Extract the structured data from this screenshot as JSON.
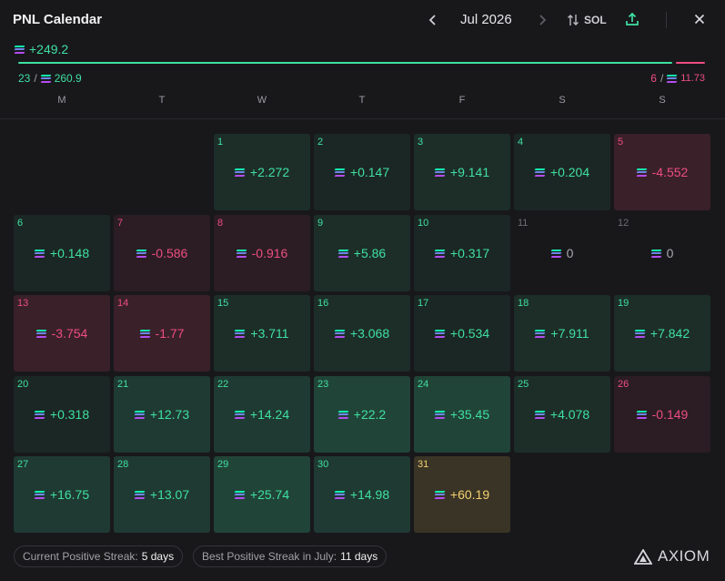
{
  "header": {
    "title": "PNL Calendar",
    "month": "Jul 2026",
    "currency": "SOL",
    "prev_icon": "chevron-left-icon",
    "next_icon": "chevron-right-icon",
    "sort_icon": "swap-vertical-icon",
    "share_icon": "share-upload-icon",
    "close_icon": "close-icon"
  },
  "summary": {
    "total": "+249.2",
    "positive_days": "23",
    "positive_total": "260.9",
    "negative_days": "6",
    "negative_total": "11.73",
    "positive_share": 0.957
  },
  "weekdays": [
    "M",
    "T",
    "W",
    "T",
    "F",
    "S",
    "S"
  ],
  "days": [
    {
      "day": "1",
      "value": "+2.272",
      "tone": "pos"
    },
    {
      "day": "2",
      "value": "+0.147",
      "tone": "pos"
    },
    {
      "day": "3",
      "value": "+9.141",
      "tone": "pos"
    },
    {
      "day": "4",
      "value": "+0.204",
      "tone": "pos"
    },
    {
      "day": "5",
      "value": "-4.552",
      "tone": "neg"
    },
    {
      "day": "6",
      "value": "+0.148",
      "tone": "pos"
    },
    {
      "day": "7",
      "value": "-0.586",
      "tone": "neg"
    },
    {
      "day": "8",
      "value": "-0.916",
      "tone": "neg"
    },
    {
      "day": "9",
      "value": "+5.86",
      "tone": "pos"
    },
    {
      "day": "10",
      "value": "+0.317",
      "tone": "pos"
    },
    {
      "day": "11",
      "value": "0",
      "tone": "zero"
    },
    {
      "day": "12",
      "value": "0",
      "tone": "zero"
    },
    {
      "day": "13",
      "value": "-3.754",
      "tone": "neg"
    },
    {
      "day": "14",
      "value": "-1.77",
      "tone": "neg"
    },
    {
      "day": "15",
      "value": "+3.711",
      "tone": "pos"
    },
    {
      "day": "16",
      "value": "+3.068",
      "tone": "pos"
    },
    {
      "day": "17",
      "value": "+0.534",
      "tone": "pos"
    },
    {
      "day": "18",
      "value": "+7.911",
      "tone": "pos"
    },
    {
      "day": "19",
      "value": "+7.842",
      "tone": "pos"
    },
    {
      "day": "20",
      "value": "+0.318",
      "tone": "pos"
    },
    {
      "day": "21",
      "value": "+12.73",
      "tone": "pos"
    },
    {
      "day": "22",
      "value": "+14.24",
      "tone": "pos"
    },
    {
      "day": "23",
      "value": "+22.2",
      "tone": "pos"
    },
    {
      "day": "24",
      "value": "+35.45",
      "tone": "pos"
    },
    {
      "day": "25",
      "value": "+4.078",
      "tone": "pos"
    },
    {
      "day": "26",
      "value": "-0.149",
      "tone": "neg"
    },
    {
      "day": "27",
      "value": "+16.75",
      "tone": "pos"
    },
    {
      "day": "28",
      "value": "+13.07",
      "tone": "pos"
    },
    {
      "day": "29",
      "value": "+25.74",
      "tone": "pos"
    },
    {
      "day": "30",
      "value": "+14.98",
      "tone": "pos"
    },
    {
      "day": "31",
      "value": "+60.19",
      "tone": "best"
    }
  ],
  "first_weekday_index": 2,
  "footer": {
    "current_streak_label": "Current Positive Streak:",
    "current_streak_value": "5 days",
    "best_streak_label": "Best Positive Streak in July:",
    "best_streak_value": "11 days",
    "logo_text": "AXIOM",
    "logo_icon": "axiom-triangle-icon"
  },
  "colors": {
    "background": "#18181b",
    "positive": "#3fe0a2",
    "negative": "#ee4d82",
    "best": "#f3d070"
  }
}
